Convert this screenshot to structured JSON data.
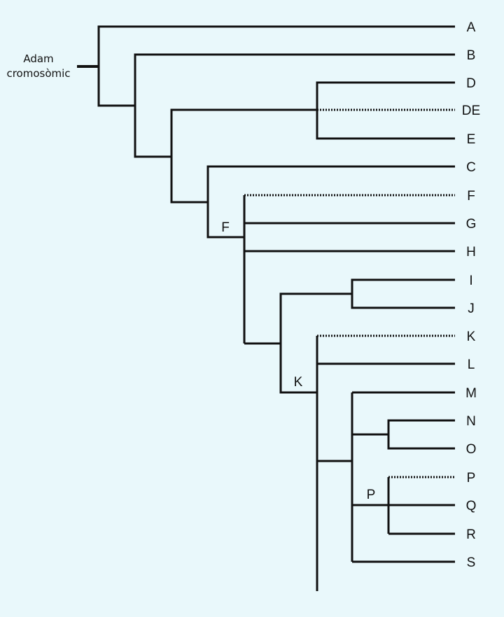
{
  "colors": {
    "background": "#e9f8fb",
    "line": "#111111"
  },
  "root": {
    "label_line1": "Adam",
    "label_line2": "cromosòmic"
  },
  "nodes": [
    {
      "id": "n-root",
      "label": ""
    },
    {
      "id": "n-b",
      "label": ""
    },
    {
      "id": "n-d",
      "label": ""
    },
    {
      "id": "n-de",
      "label": ""
    },
    {
      "id": "n-c",
      "label": ""
    },
    {
      "id": "n-f",
      "label": "F"
    },
    {
      "id": "n-ij-k",
      "label": ""
    },
    {
      "id": "n-ij",
      "label": ""
    },
    {
      "id": "n-k",
      "label": "K"
    },
    {
      "id": "n-mnops",
      "label": ""
    },
    {
      "id": "n-no",
      "label": ""
    },
    {
      "id": "n-p",
      "label": "P"
    }
  ],
  "leaves": [
    {
      "label": "A",
      "dotted": false
    },
    {
      "label": "B",
      "dotted": false
    },
    {
      "label": "D",
      "dotted": false
    },
    {
      "label": "DE",
      "dotted": true
    },
    {
      "label": "E",
      "dotted": false
    },
    {
      "label": "C",
      "dotted": false
    },
    {
      "label": "F",
      "dotted": true
    },
    {
      "label": "G",
      "dotted": false
    },
    {
      "label": "H",
      "dotted": false
    },
    {
      "label": "I",
      "dotted": false
    },
    {
      "label": "J",
      "dotted": false
    },
    {
      "label": "K",
      "dotted": true
    },
    {
      "label": "L",
      "dotted": false
    },
    {
      "label": "M",
      "dotted": false
    },
    {
      "label": "N",
      "dotted": false
    },
    {
      "label": "O",
      "dotted": false
    },
    {
      "label": "P",
      "dotted": true
    },
    {
      "label": "Q",
      "dotted": false
    },
    {
      "label": "R",
      "dotted": false
    },
    {
      "label": "S",
      "dotted": false
    },
    {
      "label": "",
      "dotted": false,
      "fading": true
    }
  ]
}
